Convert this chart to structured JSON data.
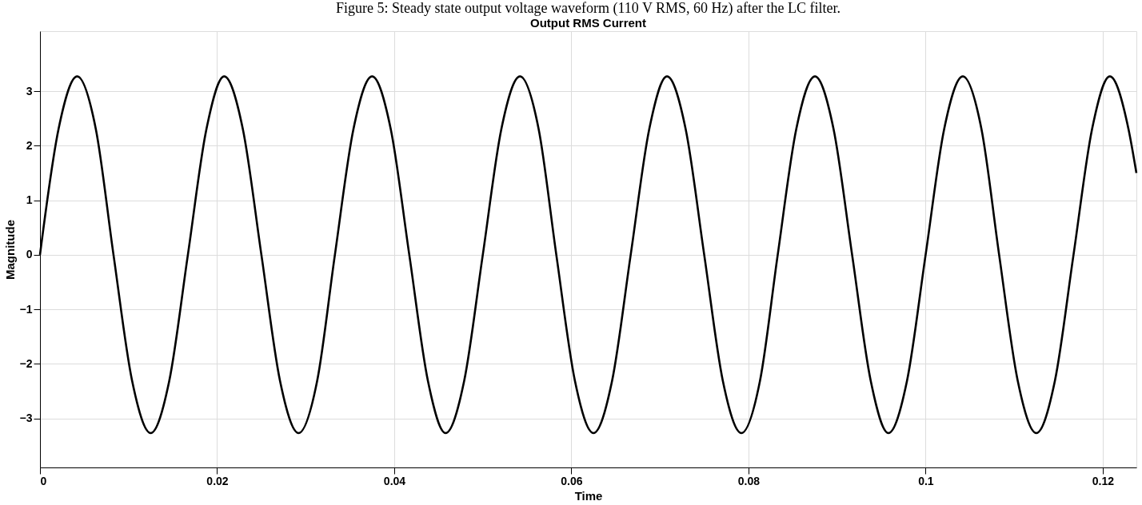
{
  "chart_data": {
    "type": "line",
    "title": "Output RMS Current",
    "xlabel": "Time",
    "ylabel": "Magnitude",
    "annotations": [
      "Figure 5: Steady state output voltage waveform (110 V RMS, 60 Hz) after the LC filter."
    ],
    "x": [
      0,
      0.0021,
      0.0042,
      0.0063,
      0.0083,
      0.0104,
      0.0125,
      0.0146,
      0.0167,
      0.0188,
      0.0208,
      0.0229,
      0.025,
      0.0271,
      0.0292,
      0.0313,
      0.0333,
      0.0354,
      0.0375,
      0.0396,
      0.0417,
      0.0438,
      0.0458,
      0.0479,
      0.05,
      0.0521,
      0.0542,
      0.0563,
      0.0583,
      0.0604,
      0.0625,
      0.0646,
      0.0667,
      0.0688,
      0.0708,
      0.0729,
      0.075,
      0.0771,
      0.0792,
      0.0813,
      0.0833,
      0.0854,
      0.0875,
      0.0896,
      0.0917,
      0.0938,
      0.0958,
      0.0979,
      0.1,
      0.1021,
      0.1042,
      0.1063,
      0.1083,
      0.1104,
      0.1125,
      0.1146,
      0.1167,
      0.1188,
      0.1208,
      0.1229,
      0.1238
    ],
    "series": [
      {
        "color": "#000000",
        "values": [
          0,
          2.31,
          3.27,
          2.31,
          0,
          -2.31,
          -3.27,
          -2.31,
          0,
          2.31,
          3.27,
          2.31,
          0,
          -2.31,
          -3.27,
          -2.31,
          0,
          2.31,
          3.27,
          2.31,
          0,
          -2.31,
          -3.27,
          -2.31,
          0,
          2.31,
          3.27,
          2.31,
          0,
          -2.31,
          -3.27,
          -2.31,
          0,
          2.31,
          3.27,
          2.31,
          0,
          -2.31,
          -3.27,
          -2.31,
          0,
          2.31,
          3.27,
          2.31,
          0,
          -2.31,
          -3.27,
          -2.31,
          0,
          2.31,
          3.27,
          2.31,
          0,
          -2.31,
          -3.27,
          -2.31,
          0,
          2.31,
          3.27,
          2.31,
          1.5
        ]
      }
    ],
    "xlim": [
      0,
      0.1238
    ],
    "xticks": [
      0,
      0.02,
      0.04,
      0.06,
      0.08,
      0.1,
      0.12
    ],
    "ylim": [
      -3.9,
      4.1
    ],
    "yticks": [
      -3,
      -2,
      -1,
      0,
      1,
      2,
      3
    ],
    "grid": true,
    "legend": false,
    "marker": "none",
    "line_style": "solid"
  }
}
